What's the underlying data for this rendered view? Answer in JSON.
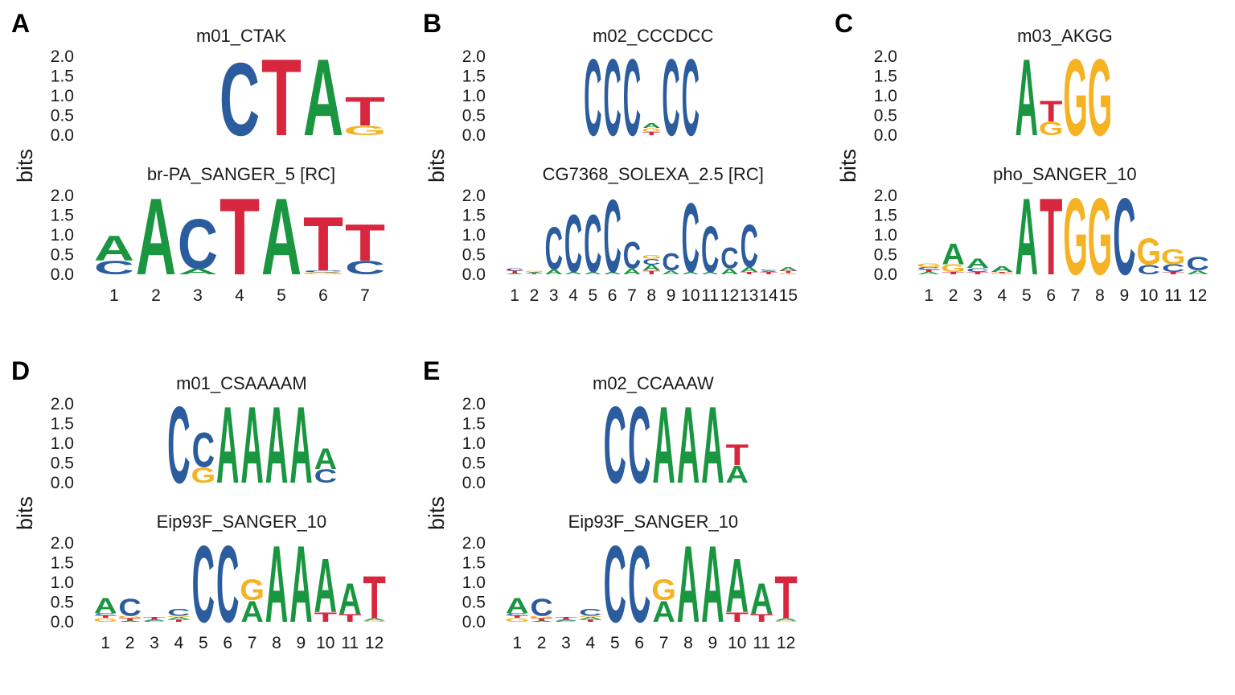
{
  "alphabet_colors": {
    "A": "#1a9641",
    "C": "#2b5c9e",
    "G": "#f5b324",
    "T": "#d7263d"
  },
  "y_ticks": [
    "0.0",
    "0.5",
    "1.0",
    "1.5",
    "2.0"
  ],
  "y_label": "bits",
  "panels": [
    {
      "letter": "A",
      "logos": [
        {
          "title": "m01_CTAK",
          "columns": [
            [
              [
                "C",
                1.9
              ]
            ],
            [
              [
                "T",
                2.0
              ]
            ],
            [
              [
                "A",
                2.0
              ]
            ],
            [
              [
                "G",
                0.25
              ],
              [
                "T",
                0.75
              ]
            ]
          ]
        },
        {
          "title": "br-PA_SANGER_5 [RC]",
          "columns": [
            [
              [
                "C",
                0.35
              ],
              [
                "A",
                0.65
              ]
            ],
            [
              [
                "A",
                2.0
              ]
            ],
            [
              [
                "A",
                0.15
              ],
              [
                "C",
                1.3
              ]
            ],
            [
              [
                "T",
                2.0
              ]
            ],
            [
              [
                "A",
                2.0
              ]
            ],
            [
              [
                "G",
                0.05
              ],
              [
                "C",
                0.05
              ],
              [
                "T",
                1.4
              ]
            ],
            [
              [
                "C",
                0.35
              ],
              [
                "T",
                0.95
              ]
            ]
          ],
          "x_labels": [
            "1",
            "2",
            "3",
            "4",
            "5",
            "6",
            "7"
          ]
        }
      ]
    },
    {
      "letter": "B",
      "logos": [
        {
          "title": "m02_CCCDCC",
          "columns": [
            [
              [
                "C",
                2.0
              ]
            ],
            [
              [
                "C",
                2.0
              ]
            ],
            [
              [
                "C",
                2.0
              ]
            ],
            [
              [
                "T",
                0.08
              ],
              [
                "G",
                0.1
              ],
              [
                "A",
                0.12
              ]
            ],
            [
              [
                "C",
                2.0
              ]
            ],
            [
              [
                "C",
                2.0
              ]
            ]
          ]
        },
        {
          "title": "CG7368_SOLEXA_2.5 [RC]",
          "columns": [
            [
              [
                "A",
                0.03
              ],
              [
                "T",
                0.06
              ],
              [
                "C",
                0.06
              ]
            ],
            [
              [
                "T",
                0.03
              ],
              [
                "A",
                0.03
              ],
              [
                "G",
                0.03
              ]
            ],
            [
              [
                "A",
                0.12
              ],
              [
                "C",
                1.1
              ]
            ],
            [
              [
                "A",
                0.06
              ],
              [
                "C",
                1.5
              ]
            ],
            [
              [
                "A",
                0.06
              ],
              [
                "C",
                1.5
              ]
            ],
            [
              [
                "A",
                0.06
              ],
              [
                "C",
                1.9
              ]
            ],
            [
              [
                "A",
                0.15
              ],
              [
                "C",
                0.7
              ]
            ],
            [
              [
                "T",
                0.1
              ],
              [
                "A",
                0.15
              ],
              [
                "C",
                0.15
              ],
              [
                "G",
                0.1
              ]
            ],
            [
              [
                "A",
                0.1
              ],
              [
                "C",
                0.45
              ]
            ],
            [
              [
                "A",
                0.06
              ],
              [
                "C",
                1.8
              ]
            ],
            [
              [
                "A",
                0.06
              ],
              [
                "C",
                1.2
              ]
            ],
            [
              [
                "A",
                0.15
              ],
              [
                "C",
                0.55
              ]
            ],
            [
              [
                "T",
                0.06
              ],
              [
                "A",
                0.12
              ],
              [
                "C",
                1.1
              ]
            ],
            [
              [
                "T",
                0.06
              ],
              [
                "A",
                0.03
              ],
              [
                "C",
                0.03
              ]
            ],
            [
              [
                "G",
                0.03
              ],
              [
                "T",
                0.06
              ],
              [
                "A",
                0.1
              ]
            ]
          ],
          "x_labels": [
            "1",
            "2",
            "3",
            "4",
            "5",
            "6",
            "7",
            "8",
            "9",
            "10",
            "11",
            "12",
            "13",
            "14",
            "15"
          ]
        }
      ]
    },
    {
      "letter": "C",
      "logos": [
        {
          "title": "m03_AKGG",
          "columns": [
            [
              [
                "A",
                2.0
              ]
            ],
            [
              [
                "G",
                0.35
              ],
              [
                "T",
                0.55
              ]
            ],
            [
              [
                "G",
                2.0
              ]
            ],
            [
              [
                "G",
                2.0
              ]
            ]
          ]
        },
        {
          "title": "pho_SANGER_10",
          "columns": [
            [
              [
                "A",
                0.06
              ],
              [
                "T",
                0.06
              ],
              [
                "C",
                0.06
              ],
              [
                "G",
                0.1
              ]
            ],
            [
              [
                "T",
                0.06
              ],
              [
                "G",
                0.2
              ],
              [
                "A",
                0.55
              ]
            ],
            [
              [
                "T",
                0.06
              ],
              [
                "C",
                0.1
              ],
              [
                "A",
                0.25
              ]
            ],
            [
              [
                "G",
                0.03
              ],
              [
                "T",
                0.03
              ],
              [
                "A",
                0.15
              ]
            ],
            [
              [
                "A",
                2.0
              ]
            ],
            [
              [
                "T",
                2.0
              ]
            ],
            [
              [
                "G",
                2.0
              ]
            ],
            [
              [
                "G",
                2.0
              ]
            ],
            [
              [
                "C",
                2.0
              ]
            ],
            [
              [
                "C",
                0.25
              ],
              [
                "G",
                0.7
              ]
            ],
            [
              [
                "T",
                0.06
              ],
              [
                "C",
                0.2
              ],
              [
                "G",
                0.4
              ]
            ],
            [
              [
                "A",
                0.1
              ],
              [
                "C",
                0.35
              ]
            ]
          ],
          "x_labels": [
            "1",
            "2",
            "3",
            "4",
            "5",
            "6",
            "7",
            "8",
            "9",
            "10",
            "11",
            "12"
          ]
        }
      ]
    },
    {
      "letter": "D",
      "logos": [
        {
          "title": "m01_CSAAAAM",
          "columns": [
            [
              [
                "C",
                2.0
              ]
            ],
            [
              [
                "G",
                0.4
              ],
              [
                "C",
                0.9
              ]
            ],
            [
              [
                "A",
                2.0
              ]
            ],
            [
              [
                "A",
                2.0
              ]
            ],
            [
              [
                "A",
                2.0
              ]
            ],
            [
              [
                "A",
                2.0
              ]
            ],
            [
              [
                "C",
                0.35
              ],
              [
                "A",
                0.55
              ]
            ]
          ]
        },
        {
          "title": "Eip93F_SANGER_10",
          "columns": [
            [
              [
                "G",
                0.1
              ],
              [
                "T",
                0.06
              ],
              [
                "C",
                0.06
              ],
              [
                "A",
                0.4
              ]
            ],
            [
              [
                "A",
                0.03
              ],
              [
                "T",
                0.06
              ],
              [
                "G",
                0.06
              ],
              [
                "C",
                0.45
              ]
            ],
            [
              [
                "C",
                0.03
              ],
              [
                "A",
                0.03
              ],
              [
                "T",
                0.06
              ]
            ],
            [
              [
                "T",
                0.06
              ],
              [
                "A",
                0.06
              ],
              [
                "G",
                0.03
              ],
              [
                "C",
                0.18
              ]
            ],
            [
              [
                "C",
                2.0
              ]
            ],
            [
              [
                "C",
                2.0
              ]
            ],
            [
              [
                "A",
                0.55
              ],
              [
                "G",
                0.55
              ]
            ],
            [
              [
                "A",
                2.0
              ]
            ],
            [
              [
                "A",
                2.0
              ]
            ],
            [
              [
                "T",
                0.25
              ],
              [
                "A",
                1.4
              ]
            ],
            [
              [
                "T",
                0.2
              ],
              [
                "A",
                0.8
              ]
            ],
            [
              [
                "G",
                0.03
              ],
              [
                "A",
                0.06
              ],
              [
                "T",
                1.1
              ]
            ]
          ],
          "x_labels": [
            "1",
            "2",
            "3",
            "4",
            "5",
            "6",
            "7",
            "8",
            "9",
            "10",
            "11",
            "12"
          ]
        }
      ]
    },
    {
      "letter": "E",
      "logos": [
        {
          "title": "m02_CCAAAW",
          "columns": [
            [
              [
                "C",
                2.0
              ]
            ],
            [
              [
                "C",
                2.0
              ]
            ],
            [
              [
                "A",
                2.0
              ]
            ],
            [
              [
                "A",
                2.0
              ]
            ],
            [
              [
                "A",
                2.0
              ]
            ],
            [
              [
                "A",
                0.45
              ],
              [
                "T",
                0.55
              ]
            ]
          ]
        },
        {
          "title": "Eip93F_SANGER_10",
          "columns": [
            [
              [
                "G",
                0.1
              ],
              [
                "T",
                0.06
              ],
              [
                "C",
                0.06
              ],
              [
                "A",
                0.4
              ]
            ],
            [
              [
                "A",
                0.03
              ],
              [
                "T",
                0.06
              ],
              [
                "G",
                0.06
              ],
              [
                "C",
                0.45
              ]
            ],
            [
              [
                "C",
                0.03
              ],
              [
                "A",
                0.03
              ],
              [
                "T",
                0.06
              ]
            ],
            [
              [
                "T",
                0.06
              ],
              [
                "A",
                0.06
              ],
              [
                "G",
                0.03
              ],
              [
                "C",
                0.18
              ]
            ],
            [
              [
                "C",
                2.0
              ]
            ],
            [
              [
                "C",
                2.0
              ]
            ],
            [
              [
                "A",
                0.55
              ],
              [
                "G",
                0.55
              ]
            ],
            [
              [
                "A",
                2.0
              ]
            ],
            [
              [
                "A",
                2.0
              ]
            ],
            [
              [
                "T",
                0.25
              ],
              [
                "A",
                1.4
              ]
            ],
            [
              [
                "T",
                0.2
              ],
              [
                "A",
                0.8
              ]
            ],
            [
              [
                "G",
                0.03
              ],
              [
                "A",
                0.06
              ],
              [
                "T",
                1.1
              ]
            ]
          ],
          "x_labels": [
            "1",
            "2",
            "3",
            "4",
            "5",
            "6",
            "7",
            "8",
            "9",
            "10",
            "11",
            "12"
          ]
        }
      ]
    }
  ]
}
